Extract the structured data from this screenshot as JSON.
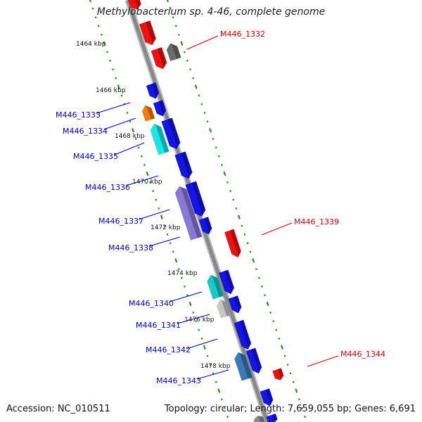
{
  "header": {
    "title": "Methylobacterium sp. 4-46, complete genome"
  },
  "footer": {
    "accession": "Accession: NC_010511",
    "summary": "Topology: circular; Length: 7,659,055 bp; Genes: 6,691"
  },
  "colors": {
    "backbone": "#8c8c8c",
    "tick": "#2e8b22",
    "forward_label": "#0000cc",
    "reverse_label": "#dd0000",
    "blue_gene": "#1414e6",
    "red_gene": "#ee1111"
  },
  "kbp_ticks": [
    {
      "label": "1464 kbp"
    },
    {
      "label": "1466 kbp"
    },
    {
      "label": "1468 kbp"
    },
    {
      "label": "1470 kbp"
    },
    {
      "label": "1472 kbp"
    },
    {
      "label": "1474 kbp"
    },
    {
      "label": "1476 kbp"
    },
    {
      "label": "1478 kbp"
    }
  ],
  "gene_labels": [
    {
      "text": "M446_1332",
      "strand": "reverse"
    },
    {
      "text": "M446_1333",
      "strand": "forward"
    },
    {
      "text": "M446_1334",
      "strand": "forward"
    },
    {
      "text": "M446_1335",
      "strand": "forward"
    },
    {
      "text": "M446_1336",
      "strand": "forward"
    },
    {
      "text": "M446_1337",
      "strand": "forward"
    },
    {
      "text": "M446_1338",
      "strand": "forward"
    },
    {
      "text": "M446_1339",
      "strand": "reverse"
    },
    {
      "text": "M446_1340",
      "strand": "forward"
    },
    {
      "text": "M446_1341",
      "strand": "forward"
    },
    {
      "text": "M446_1342",
      "strand": "forward"
    },
    {
      "text": "M446_1343",
      "strand": "forward"
    },
    {
      "text": "M446_1344",
      "strand": "reverse"
    }
  ]
}
